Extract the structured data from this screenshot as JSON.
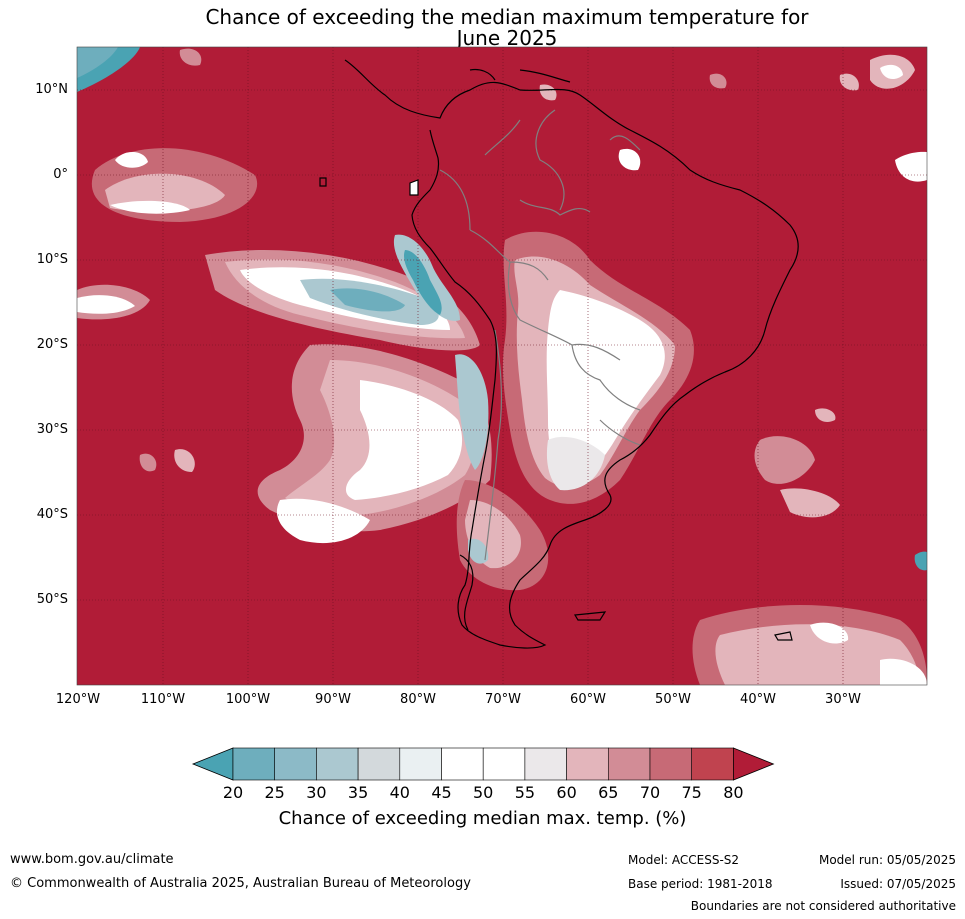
{
  "title_line1": "Chance of exceeding the median maximum temperature for",
  "title_line2": "June 2025",
  "lat_labels": [
    "10°N",
    "0°",
    "10°S",
    "20°S",
    "30°S",
    "40°S",
    "50°S"
  ],
  "lon_labels": [
    "120°W",
    "110°W",
    "100°W",
    "90°W",
    "80°W",
    "70°W",
    "60°W",
    "50°W",
    "40°W",
    "30°W"
  ],
  "colorbar": {
    "ticks": [
      "20",
      "25",
      "30",
      "35",
      "40",
      "45",
      "50",
      "55",
      "60",
      "65",
      "70",
      "75",
      "80"
    ],
    "colors": [
      "#4aa3b3",
      "#6eaebd",
      "#8cbac7",
      "#abc8d0",
      "#d3d9dc",
      "#eaf0f2",
      "#ffffff",
      "#ffffff",
      "#ebe8ea",
      "#e3b5bb",
      "#d28c96",
      "#c76a76",
      "#c0434f",
      "#b11c37"
    ],
    "label": "Chance of exceeding median max. temp. (%)"
  },
  "map_colors": {
    "background": "#b11c37",
    "land_line": "#000000",
    "border_line": "#808080"
  },
  "footer": {
    "website": "www.bom.gov.au/climate",
    "copyright": "© Commonwealth of Australia 2025, Australian Bureau of Meteorology",
    "model": "Model: ACCESS-S2",
    "base_period": "Base period: 1981-2018",
    "model_run": "Model run: 05/05/2025",
    "issued": "Issued: 07/05/2025",
    "disclaimer": "Boundaries are not considered authoritative"
  }
}
